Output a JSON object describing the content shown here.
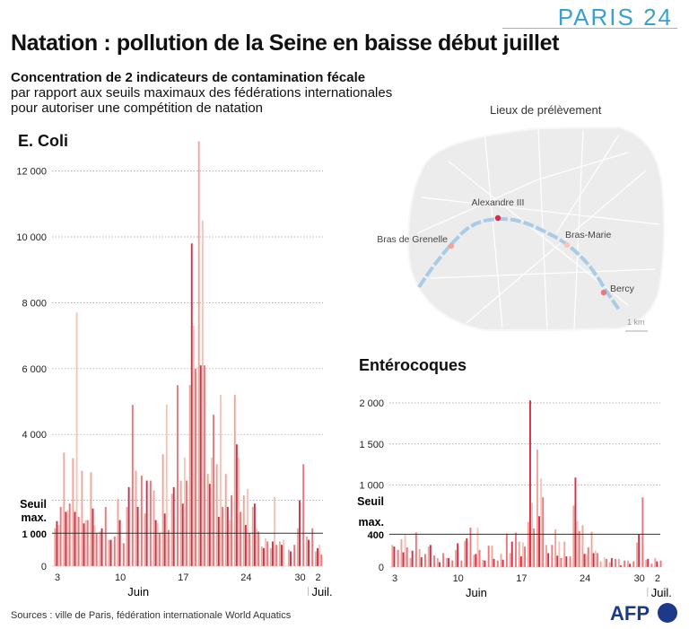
{
  "header": {
    "title": "Natation : pollution de la Seine en baisse début juillet",
    "subtitle_bold": "Concentration de 2 indicateurs de contamination fécale",
    "subtitle_line2": "par rapport aux seuils maximaux des fédérations internationales",
    "subtitle_line3": "pour autoriser une compétition de natation",
    "brand": "PARIS 24"
  },
  "map": {
    "title": "Lieux de prélèvement",
    "sites": [
      {
        "name": "Bras de Grenelle",
        "color": "#f0a49a"
      },
      {
        "name": "Alexandre III",
        "color": "#d42e48"
      },
      {
        "name": "Bras-Marie",
        "color": "#f7c4bb"
      },
      {
        "name": "Bercy",
        "color": "#e8787c"
      }
    ],
    "scale_label": "1 km",
    "river_color": "#a9cbe6"
  },
  "footer": {
    "sources": "Sources : ville de Paris, fédération internationale World Aquatics",
    "logo": "AFP"
  },
  "chart_data": [
    {
      "type": "bar",
      "title": "E. Coli",
      "ylim": [
        0,
        13000
      ],
      "yticks": [
        "0",
        "1 000",
        "4 000",
        "6 000",
        "8 000",
        "10 000",
        "12 000"
      ],
      "ytick_values": [
        0,
        1000,
        4000,
        6000,
        8000,
        10000,
        12000
      ],
      "grid_values": [
        2000,
        4000,
        6000,
        8000,
        10000,
        12000
      ],
      "threshold": {
        "value": 1000,
        "label1": "Seuil",
        "label2": "max.",
        "label3": "1 000"
      },
      "xticks": [
        {
          "day": 0,
          "label": "3"
        },
        {
          "day": 7,
          "label": "10"
        },
        {
          "day": 14,
          "label": "17"
        },
        {
          "day": 21,
          "label": "24"
        },
        {
          "day": 27,
          "label": "30"
        },
        {
          "day": 29,
          "label": "2"
        }
      ],
      "month_labels": {
        "june": "Juin",
        "july": "Juil."
      },
      "days": [
        "3",
        "4",
        "5",
        "6",
        "7",
        "8",
        "9",
        "10",
        "11",
        "12",
        "13",
        "14",
        "15",
        "16",
        "17",
        "18",
        "19",
        "20",
        "21",
        "22",
        "23",
        "24",
        "25",
        "26",
        "27",
        "28",
        "29",
        "30",
        "1",
        "2"
      ],
      "values": [
        [
          1150,
          1370,
          1250,
          1800
        ],
        [
          3450,
          1650,
          1700,
          1900
        ],
        [
          3280,
          1650,
          7700,
          1500
        ],
        [
          2900,
          1300,
          1400,
          1400
        ],
        [
          2850,
          1750,
          1250,
          1000
        ],
        [
          1050,
          1150,
          null,
          1800
        ],
        [
          800,
          800,
          null,
          900
        ],
        [
          2050,
          1400,
          null,
          700
        ],
        [
          1800,
          2400,
          null,
          4900
        ],
        [
          2900,
          1800,
          null,
          2750
        ],
        [
          1600,
          2600,
          null,
          2600
        ],
        [
          2300,
          1400,
          1300,
          1000
        ],
        [
          3400,
          1600,
          4900,
          1100
        ],
        [
          2200,
          2400,
          null,
          5500
        ],
        [
          2600,
          1900,
          3300,
          2600
        ],
        [
          5500,
          9800,
          7300,
          6000
        ],
        [
          12900,
          6100,
          10500,
          6100
        ],
        [
          2800,
          2500,
          3300,
          4600
        ],
        [
          3100,
          1500,
          5200,
          1800
        ],
        [
          2800,
          1800,
          1400,
          2150
        ],
        [
          5200,
          3700,
          3300,
          1650
        ],
        [
          2150,
          1250,
          2350,
          1000
        ],
        [
          1800,
          1900,
          1150,
          1050
        ],
        [
          600,
          550,
          850,
          750
        ],
        [
          550,
          750,
          2100,
          650
        ],
        [
          750,
          650,
          800,
          null
        ],
        [
          500,
          450,
          null,
          650
        ],
        [
          1150,
          2000,
          null,
          3100
        ],
        [
          900,
          800,
          null,
          1150
        ],
        [
          450,
          550,
          650,
          350
        ]
      ]
    },
    {
      "type": "bar",
      "title": "Entérocoques",
      "ylim": [
        0,
        2100
      ],
      "yticks": [
        "0",
        "400",
        "1 000",
        "1 500",
        "2 000"
      ],
      "ytick_values": [
        0,
        400,
        1000,
        1500,
        2000
      ],
      "grid_values": [
        1000,
        1500,
        2000
      ],
      "threshold": {
        "value": 400,
        "label1": "Seuil",
        "label2": "max.",
        "label3": "400"
      },
      "xticks": [
        {
          "day": 0,
          "label": "3"
        },
        {
          "day": 7,
          "label": "10"
        },
        {
          "day": 14,
          "label": "17"
        },
        {
          "day": 21,
          "label": "24"
        },
        {
          "day": 27,
          "label": "30"
        },
        {
          "day": 29,
          "label": "2"
        }
      ],
      "month_labels": {
        "june": "Juin",
        "july": "Juil."
      },
      "days": [
        "3",
        "4",
        "5",
        "6",
        "7",
        "8",
        "9",
        "10",
        "11",
        "12",
        "13",
        "14",
        "15",
        "16",
        "17",
        "18",
        "19",
        "20",
        "21",
        "22",
        "23",
        "24",
        "25",
        "26",
        "27",
        "28",
        "29",
        "30",
        "1",
        "2"
      ],
      "values": [
        [
          270,
          250,
          null,
          210
        ],
        [
          340,
          180,
          400,
          240
        ],
        [
          110,
          200,
          null,
          420
        ],
        [
          220,
          120,
          null,
          160
        ],
        [
          250,
          270,
          null,
          140
        ],
        [
          110,
          60,
          null,
          170
        ],
        [
          110,
          110,
          null,
          80
        ],
        [
          210,
          290,
          null,
          80
        ],
        [
          320,
          350,
          null,
          480
        ],
        [
          150,
          160,
          480,
          210
        ],
        [
          90,
          80,
          null,
          260
        ],
        [
          260,
          100,
          null,
          80
        ],
        [
          160,
          90,
          null,
          410
        ],
        [
          170,
          310,
          null,
          420
        ],
        [
          310,
          130,
          300,
          250
        ],
        [
          550,
          2030,
          780,
          470
        ],
        [
          1430,
          620,
          1080,
          850
        ],
        [
          270,
          170,
          null,
          270
        ],
        [
          460,
          140,
          310,
          110
        ],
        [
          310,
          130,
          null,
          130
        ],
        [
          750,
          1090,
          560,
          440
        ],
        [
          510,
          160,
          160,
          240
        ],
        [
          430,
          170,
          200,
          170
        ],
        [
          70,
          null,
          120,
          100
        ],
        [
          60,
          110,
          null,
          100
        ],
        [
          100,
          20,
          null,
          80
        ],
        [
          80,
          40,
          null,
          70
        ],
        [
          300,
          400,
          null,
          850
        ],
        [
          90,
          100,
          null,
          40
        ],
        [
          110,
          70,
          null,
          80
        ]
      ]
    }
  ]
}
